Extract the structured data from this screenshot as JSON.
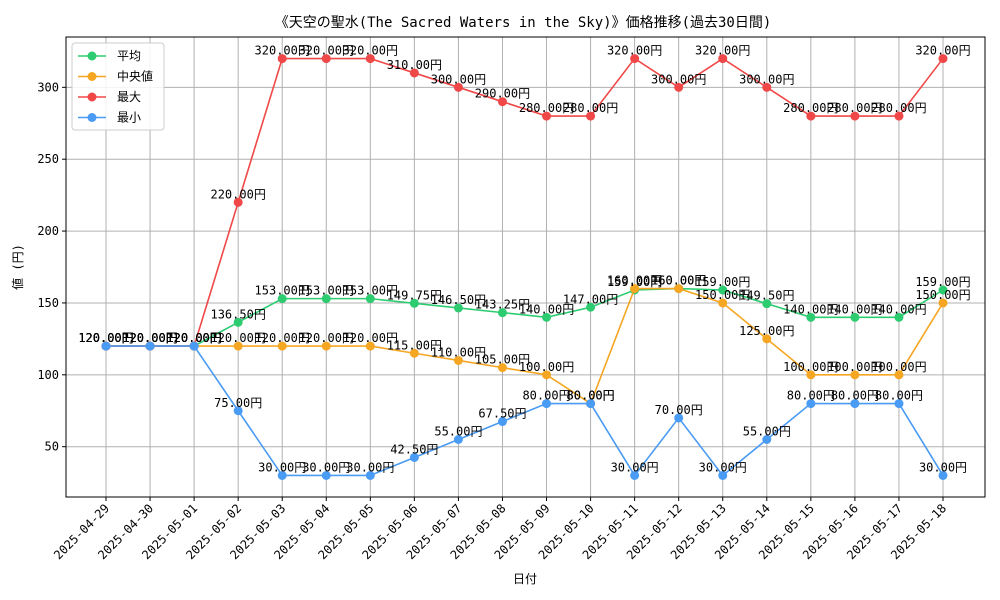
{
  "chart_data": {
    "type": "line",
    "title": "《天空の聖水(The Sacred Waters in the Sky)》価格推移(過去30日間)",
    "xlabel": "日付",
    "ylabel": "値 (円)",
    "ylim": [
      15,
      335
    ],
    "yticks": [
      50,
      100,
      150,
      200,
      250,
      300
    ],
    "grid": true,
    "legend_position": "top-left",
    "value_suffix": "円",
    "categories": [
      "2025-04-29",
      "2025-04-30",
      "2025-05-01",
      "2025-05-02",
      "2025-05-03",
      "2025-05-04",
      "2025-05-05",
      "2025-05-06",
      "2025-05-07",
      "2025-05-08",
      "2025-05-09",
      "2025-05-10",
      "2025-05-11",
      "2025-05-12",
      "2025-05-13",
      "2025-05-14",
      "2025-05-15",
      "2025-05-16",
      "2025-05-17",
      "2025-05-18"
    ],
    "series": [
      {
        "name": "平均",
        "color": "#2ecc71",
        "values": [
          120,
          120,
          120,
          136.5,
          153,
          153,
          153,
          149.75,
          146.5,
          143.25,
          140,
          147,
          159,
          160,
          159,
          149.5,
          140,
          140,
          140,
          159
        ]
      },
      {
        "name": "中央値",
        "color": "#f5a623",
        "values": [
          120,
          120,
          120,
          120,
          120,
          120,
          120,
          115,
          110,
          105,
          100,
          80,
          160,
          160,
          150,
          125,
          100,
          100,
          100,
          150
        ]
      },
      {
        "name": "最大",
        "color": "#f04848",
        "values": [
          120,
          120,
          120,
          220,
          320,
          320,
          320,
          310,
          300,
          290,
          280,
          280,
          320,
          300,
          320,
          300,
          280,
          280,
          280,
          320
        ]
      },
      {
        "name": "最小",
        "color": "#4a9bf4",
        "values": [
          120,
          120,
          120,
          75,
          30,
          30,
          30,
          42.5,
          55,
          67.5,
          80,
          80,
          30,
          70,
          30,
          55,
          80,
          80,
          80,
          30
        ]
      }
    ]
  }
}
